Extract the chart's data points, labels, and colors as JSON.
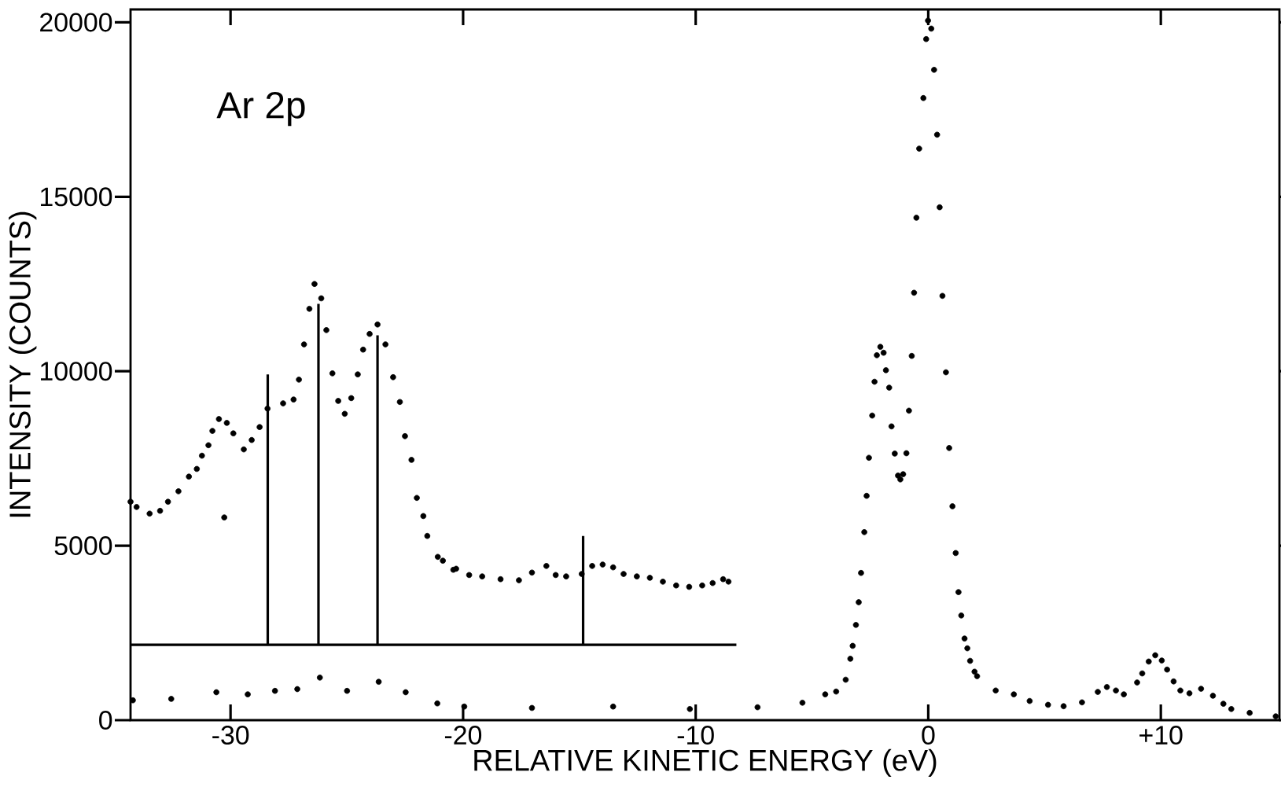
{
  "chart_data": {
    "type": "scatter",
    "xlabel": "RELATIVE KINETIC ENERGY (eV)",
    "ylabel": "INTENSITY (COUNTS)",
    "annotations": [
      "Ar 2p"
    ],
    "xlim": [
      -34.3,
      15.1
    ],
    "ylim": [
      0,
      20370
    ],
    "xticks": [
      -30,
      -20,
      -10,
      0,
      {
        "value": 10,
        "label": "+10"
      }
    ],
    "yticks": [
      0,
      5000,
      10000,
      15000,
      20000
    ],
    "marker": "circle",
    "series": [
      {
        "color": "#000000",
        "x": [
          -34.2,
          -32.55,
          -30.61,
          -29.26,
          -28.09,
          -27.13,
          -26.16,
          -24.99,
          -23.63,
          -22.47,
          -21.11,
          -19.95,
          -17.04,
          -13.55,
          -10.25,
          -7.34,
          -5.41,
          -4.43,
          -3.96,
          -3.55,
          -3.35,
          -3.25,
          -3.11,
          -2.99,
          -2.89,
          -2.75,
          -2.65,
          -2.55,
          -2.41,
          -2.31,
          -2.21,
          -2.06,
          -1.92,
          -1.82,
          -1.68,
          -1.58,
          -1.44,
          -1.3,
          -1.2,
          -1.08,
          -0.94,
          -0.83,
          -0.71,
          -0.61,
          -0.51,
          -0.39,
          -0.21,
          -0.09,
          -0.01,
          0.13,
          0.25,
          0.38,
          0.49,
          0.61,
          0.76,
          0.9,
          1.04,
          1.18,
          1.3,
          1.42,
          1.56,
          1.68,
          1.8,
          1.99,
          2.1,
          2.9,
          3.68,
          4.36,
          5.15,
          5.82,
          6.61,
          7.29,
          7.68,
          8.07,
          8.41,
          8.98,
          9.2,
          9.48,
          9.76,
          10.04,
          10.27,
          10.55,
          10.84,
          11.23,
          11.73,
          12.24,
          12.69,
          13.03,
          13.82,
          14.94
        ],
        "values": [
          570,
          610,
          800,
          740,
          840,
          890,
          1220,
          840,
          1100,
          800,
          480,
          390,
          350,
          390,
          320,
          370,
          500,
          740,
          820,
          1160,
          1760,
          2130,
          2730,
          3380,
          4220,
          5390,
          6430,
          7520,
          8730,
          9700,
          10460,
          10700,
          10530,
          10030,
          9530,
          8420,
          7640,
          7010,
          6900,
          7050,
          7650,
          8870,
          10440,
          12250,
          14400,
          16380,
          17830,
          19520,
          20050,
          19820,
          18640,
          16780,
          14700,
          12160,
          9970,
          7800,
          6130,
          4790,
          3670,
          3000,
          2340,
          2060,
          1700,
          1390,
          1260,
          850,
          740,
          550,
          440,
          400,
          510,
          810,
          950,
          850,
          740,
          1080,
          1340,
          1680,
          1860,
          1710,
          1450,
          1110,
          850,
          770,
          900,
          700,
          470,
          320,
          210,
          110
        ]
      },
      {
        "color": "#000000",
        "x": [
          -34.3,
          -34.04,
          -33.48,
          -33.03,
          -32.69,
          -32.24,
          -31.79,
          -31.45,
          -31.23,
          -30.95,
          -30.78,
          -30.5,
          -30.27,
          -30.16,
          -29.88,
          -29.43,
          -29.09,
          -28.75,
          -28.41,
          -27.74,
          -27.29,
          -27.06,
          -26.84,
          -26.61,
          -26.39,
          -26.1,
          -25.88,
          -25.62,
          -25.37,
          -25.09,
          -24.81,
          -24.53,
          -24.3,
          -24.02,
          -23.68,
          -23.34,
          -23.01,
          -22.72,
          -22.5,
          -22.22,
          -21.99,
          -21.71,
          -21.54,
          -21.09,
          -20.87,
          -20.42,
          -20.3,
          -19.74,
          -19.18,
          -18.39,
          -17.6,
          -17.04,
          -16.42,
          -16.02,
          -15.57,
          -14.9,
          -14.45,
          -14.0,
          -13.55,
          -13.1,
          -12.53,
          -11.97,
          -11.41,
          -10.84,
          -10.28,
          -9.72,
          -9.27,
          -8.82,
          -8.59
        ],
        "values": [
          6260,
          6110,
          5920,
          6000,
          6260,
          6560,
          6980,
          7200,
          7580,
          7880,
          8290,
          8630,
          5810,
          8520,
          8220,
          7760,
          8030,
          8400,
          8930,
          9080,
          9190,
          9760,
          10770,
          11790,
          12500,
          12090,
          11180,
          9940,
          9150,
          8780,
          9230,
          9910,
          10620,
          11070,
          11340,
          10770,
          9830,
          9120,
          8140,
          7460,
          6370,
          5850,
          5280,
          4680,
          4570,
          4310,
          4340,
          4160,
          4120,
          4040,
          4010,
          4230,
          4420,
          4160,
          4120,
          4190,
          4420,
          4460,
          4380,
          4190,
          4120,
          4080,
          3970,
          3860,
          3820,
          3860,
          3930,
          4040,
          3970
        ]
      },
      {
        "type": "line",
        "marker": "none",
        "color": "#000000",
        "x": [
          -34.3,
          -8.25
        ],
        "values": [
          2160,
          2160
        ]
      },
      {
        "type": "bar",
        "marker": "none",
        "color": "#000000",
        "x": [
          -28.4,
          -26.22,
          -23.68,
          -14.84
        ],
        "base": [
          2160,
          2160,
          2160,
          2160
        ],
        "values": [
          7750,
          9770,
          8870,
          3120
        ]
      }
    ]
  }
}
